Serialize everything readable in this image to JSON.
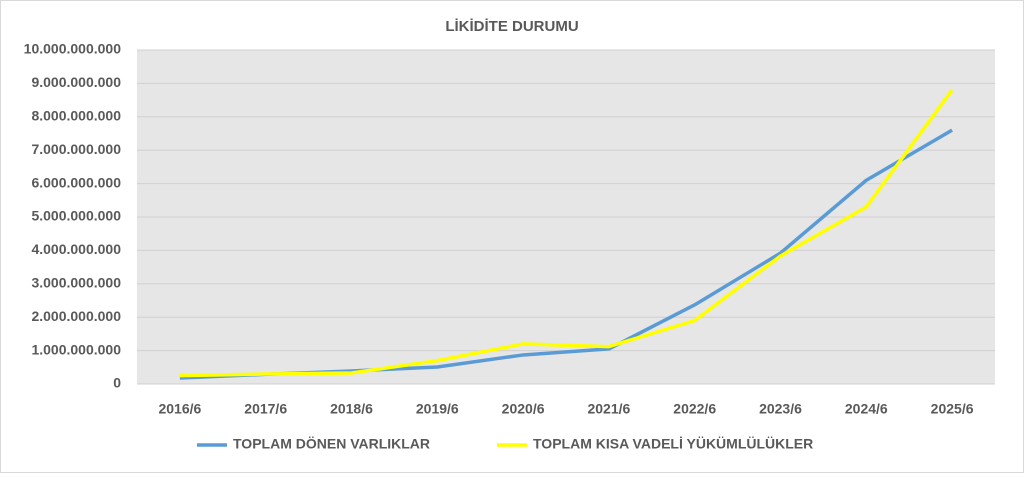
{
  "chart_data": {
    "type": "line",
    "title": "LİKİDİTE DURUMU",
    "categories": [
      "2016/6",
      "2017/6",
      "2018/6",
      "2019/6",
      "2020/6",
      "2021/6",
      "2022/6",
      "2023/6",
      "2024/6",
      "2025/6"
    ],
    "series": [
      {
        "name": "TOPLAM DÖNEN VARLIKLAR",
        "color": "#5b9bd5",
        "values": [
          180000000,
          290000000,
          390000000,
          510000000,
          870000000,
          1050000000,
          2370000000,
          3920000000,
          6100000000,
          7600000000
        ]
      },
      {
        "name": "TOPLAM KISA VADELİ YÜKÜMLÜLÜKLER",
        "color": "#ffff00",
        "values": [
          250000000,
          300000000,
          330000000,
          700000000,
          1200000000,
          1120000000,
          1900000000,
          3830000000,
          5300000000,
          8800000000
        ]
      }
    ],
    "ylim": [
      0,
      10000000000
    ],
    "yticks": [
      0,
      {
        "value": 1000000000,
        "label": "1.000.000.000"
      },
      {
        "value": 2000000000,
        "label": "2.000.000.000"
      },
      {
        "value": 3000000000,
        "label": "3.000.000.000"
      },
      {
        "value": 4000000000,
        "label": "4.000.000.000"
      },
      {
        "value": 5000000000,
        "label": "5.000.000.000"
      },
      {
        "value": 6000000000,
        "label": "6.000.000.000"
      },
      {
        "value": 7000000000,
        "label": "7.000.000.000"
      },
      {
        "value": 8000000000,
        "label": "8.000.000.000"
      },
      {
        "value": 9000000000,
        "label": "9.000.000.000"
      },
      {
        "value": 10000000000,
        "label": "10.000.000.000"
      }
    ],
    "grid": true,
    "legend": "bottom"
  }
}
